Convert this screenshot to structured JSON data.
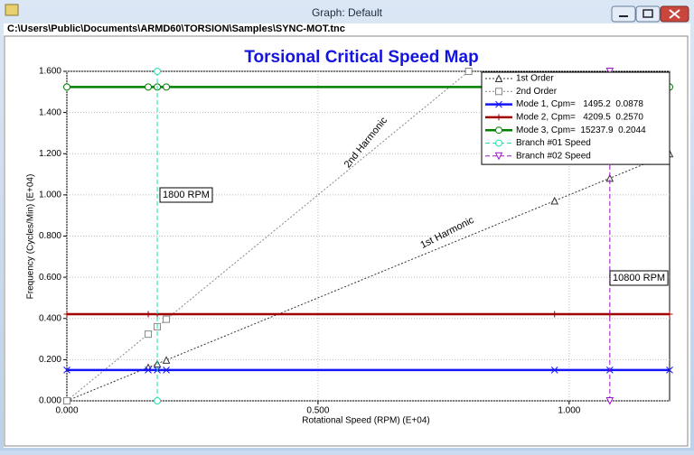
{
  "window": {
    "title": "Graph: Default",
    "path": "C:\\Users\\Public\\Documents\\ARMD60\\TORSION\\Samples\\SYNC-MOT.tnc"
  },
  "chart_data": {
    "type": "line",
    "title": "Torsional Critical Speed Map",
    "x_label": "Rotational Speed (RPM) (E+04)",
    "y_label": "Frequency (Cycles/Min) (E+04)",
    "xlim": [
      0,
      1.2
    ],
    "ylim": [
      0,
      1.6
    ],
    "xticks": [
      {
        "value": 0,
        "label": "0.000"
      },
      {
        "value": 0.5,
        "label": "0.500"
      },
      {
        "value": 1,
        "label": "1.000"
      }
    ],
    "yticks": [
      {
        "value": 0,
        "label": "0.000"
      },
      {
        "value": 0.2,
        "label": "0.200"
      },
      {
        "value": 0.4,
        "label": "0.400"
      },
      {
        "value": 0.6,
        "label": "0.600"
      },
      {
        "value": 0.8,
        "label": "0.800"
      },
      {
        "value": 1,
        "label": "1.000"
      },
      {
        "value": 1.2,
        "label": "1.200"
      },
      {
        "value": 1.4,
        "label": "1.400"
      },
      {
        "value": 1.6,
        "label": "1.600"
      }
    ],
    "grid": true,
    "legend": "top-right",
    "series": [
      {
        "name": "1st Order",
        "color": "#333333",
        "marker": "triangle",
        "dash": "2,2",
        "x": [
          0,
          0.162,
          0.18,
          0.198,
          0.971,
          1.081,
          1.2
        ],
        "values": [
          0,
          0.162,
          0.18,
          0.198,
          0.971,
          1.081,
          1.2
        ]
      },
      {
        "name": "2nd Order",
        "color": "#888888",
        "marker": "square",
        "dash": "2,2",
        "x": [
          0,
          0.162,
          0.18,
          0.198,
          0.8
        ],
        "values": [
          0,
          0.324,
          0.36,
          0.396,
          1.6
        ]
      },
      {
        "name": "Mode 1, Cpm=   1495.2  0.0878",
        "color": "#1414ff",
        "marker": "x",
        "dash": "",
        "x": [
          0,
          0.162,
          0.18,
          0.198,
          0.971,
          1.081,
          1.2
        ],
        "values": [
          0.1495,
          0.1495,
          0.1495,
          0.1495,
          0.1495,
          0.1495,
          0.1495
        ]
      },
      {
        "name": "Mode 2, Cpm=   4209.5  0.2570",
        "color": "#a00000",
        "marker": "plus",
        "dash": "",
        "x": [
          0,
          0.162,
          0.18,
          0.971,
          1.081,
          1.2
        ],
        "values": [
          0.42095,
          0.42095,
          0.42095,
          0.42095,
          0.42095,
          0.42095
        ]
      },
      {
        "name": "Mode 3, Cpm=  15237.9  0.2044",
        "color": "#008000",
        "marker": "circle",
        "dash": "",
        "x": [
          0,
          0.162,
          0.18,
          0.198,
          1.2
        ],
        "values": [
          1.52379,
          1.52379,
          1.52379,
          1.52379,
          1.52379
        ]
      },
      {
        "name": "Branch #01 Speed",
        "color": "#20e0b0",
        "marker": "circle",
        "dash": "5,3",
        "x": [
          0.18,
          0.18
        ],
        "values": [
          0,
          1.6
        ]
      },
      {
        "name": "Branch #02 Speed",
        "color": "#a010d0",
        "marker": "tridown",
        "dash": "5,3",
        "x": [
          1.081,
          1.081
        ],
        "values": [
          0,
          1.6
        ]
      }
    ],
    "annotations": [
      "2nd Harmonic",
      "1st Harmonic",
      "1800 RPM",
      "10800 RPM"
    ]
  }
}
